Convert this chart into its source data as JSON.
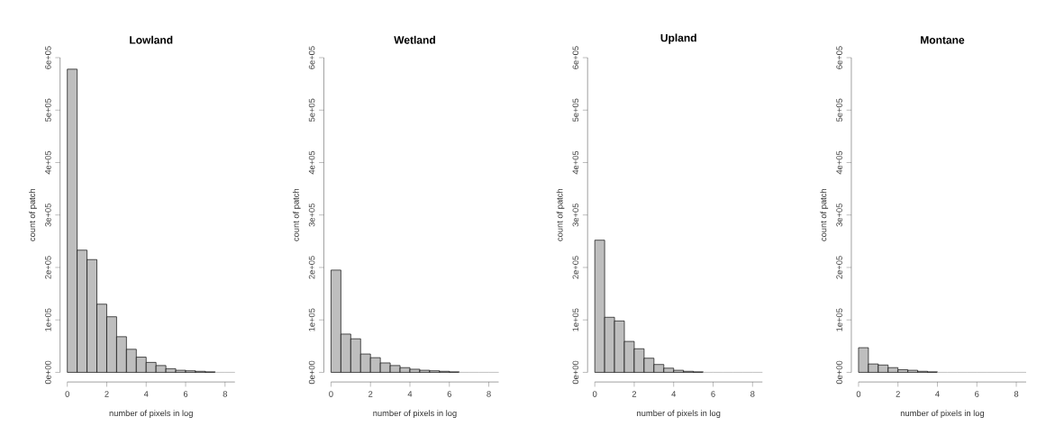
{
  "chart_data": [
    {
      "type": "histogram",
      "title": "Lowland",
      "xlabel": "number of pixels in log",
      "ylabel": "count of patch",
      "color": "#bebebe",
      "bins": [
        0,
        0.5,
        1,
        1.5,
        2,
        2.5,
        3,
        3.5,
        4,
        4.5,
        5,
        5.5,
        6,
        6.5,
        7,
        7.5,
        8,
        8.5
      ],
      "values": [
        578000,
        233000,
        215000,
        130000,
        106000,
        68000,
        44000,
        29000,
        19000,
        13000,
        7000,
        4000,
        3000,
        2000,
        1000,
        0,
        0
      ],
      "xlim": [
        0,
        8.5
      ],
      "ylim": [
        0,
        600000
      ],
      "xticks": [
        0,
        2,
        4,
        6,
        8
      ],
      "yticks": [
        {
          "value": 0,
          "label": "0e+00"
        },
        {
          "value": 100000,
          "label": "1e+05"
        },
        {
          "value": 200000,
          "label": "2e+05"
        },
        {
          "value": 300000,
          "label": "3e+05"
        },
        {
          "value": 400000,
          "label": "4e+05"
        },
        {
          "value": 500000,
          "label": "5e+05"
        },
        {
          "value": 600000,
          "label": "6e+05"
        }
      ]
    },
    {
      "type": "histogram",
      "title": "Wetland",
      "xlabel": "number of pixels in log",
      "ylabel": "count of patch",
      "color": "#bebebe",
      "bins": [
        0,
        0.5,
        1,
        1.5,
        2,
        2.5,
        3,
        3.5,
        4,
        4.5,
        5,
        5.5,
        6,
        6.5,
        7,
        7.5,
        8,
        8.5
      ],
      "values": [
        195000,
        73000,
        64000,
        35000,
        28000,
        18000,
        13000,
        9000,
        6000,
        4000,
        3000,
        2000,
        1000,
        0,
        0,
        0,
        0
      ],
      "xlim": [
        0,
        8.5
      ],
      "ylim": [
        0,
        600000
      ],
      "xticks": [
        0,
        2,
        4,
        6,
        8
      ],
      "yticks": [
        {
          "value": 0,
          "label": "0e+00"
        },
        {
          "value": 100000,
          "label": "1e+05"
        },
        {
          "value": 200000,
          "label": "2e+05"
        },
        {
          "value": 300000,
          "label": "3e+05"
        },
        {
          "value": 400000,
          "label": "4e+05"
        },
        {
          "value": 500000,
          "label": "5e+05"
        },
        {
          "value": 600000,
          "label": "6e+05"
        }
      ]
    },
    {
      "type": "histogram",
      "title": "Upland",
      "xlabel": "number of pixels in log",
      "ylabel": "count of patch",
      "color": "#bebebe",
      "bins": [
        0,
        0.5,
        1,
        1.5,
        2,
        2.5,
        3,
        3.5,
        4,
        4.5,
        5,
        5.5,
        6,
        6.5,
        7,
        7.5,
        8,
        8.5
      ],
      "values": [
        252000,
        105000,
        98000,
        59000,
        45000,
        27000,
        15000,
        8000,
        4000,
        2000,
        1000,
        0,
        0,
        0,
        0,
        0,
        0
      ],
      "xlim": [
        0,
        8.5
      ],
      "ylim": [
        0,
        600000
      ],
      "xticks": [
        0,
        2,
        4,
        6,
        8
      ],
      "yticks": [
        {
          "value": 0,
          "label": "0e+00"
        },
        {
          "value": 100000,
          "label": "1e+05"
        },
        {
          "value": 200000,
          "label": "2e+05"
        },
        {
          "value": 300000,
          "label": "3e+05"
        },
        {
          "value": 400000,
          "label": "4e+05"
        },
        {
          "value": 500000,
          "label": "5e+05"
        },
        {
          "value": 600000,
          "label": "6e+05"
        }
      ]
    },
    {
      "type": "histogram",
      "title": "Montane",
      "xlabel": "number of pixels in log",
      "ylabel": "count of patch",
      "color": "#bebebe",
      "bins": [
        0,
        0.5,
        1,
        1.5,
        2,
        2.5,
        3,
        3.5,
        4,
        4.5,
        5,
        5.5,
        6,
        6.5,
        7,
        7.5,
        8,
        8.5
      ],
      "values": [
        47000,
        16000,
        14000,
        9000,
        5000,
        4000,
        2000,
        1000,
        0,
        0,
        0,
        0,
        0,
        0,
        0,
        0,
        0
      ],
      "xlim": [
        0,
        8.5
      ],
      "ylim": [
        0,
        600000
      ],
      "xticks": [
        0,
        2,
        4,
        6,
        8
      ],
      "yticks": [
        {
          "value": 0,
          "label": "0e+00"
        },
        {
          "value": 100000,
          "label": "1e+05"
        },
        {
          "value": 200000,
          "label": "2e+05"
        },
        {
          "value": 300000,
          "label": "3e+05"
        },
        {
          "value": 400000,
          "label": "4e+05"
        },
        {
          "value": 500000,
          "label": "5e+05"
        },
        {
          "value": 600000,
          "label": "6e+05"
        }
      ]
    }
  ]
}
